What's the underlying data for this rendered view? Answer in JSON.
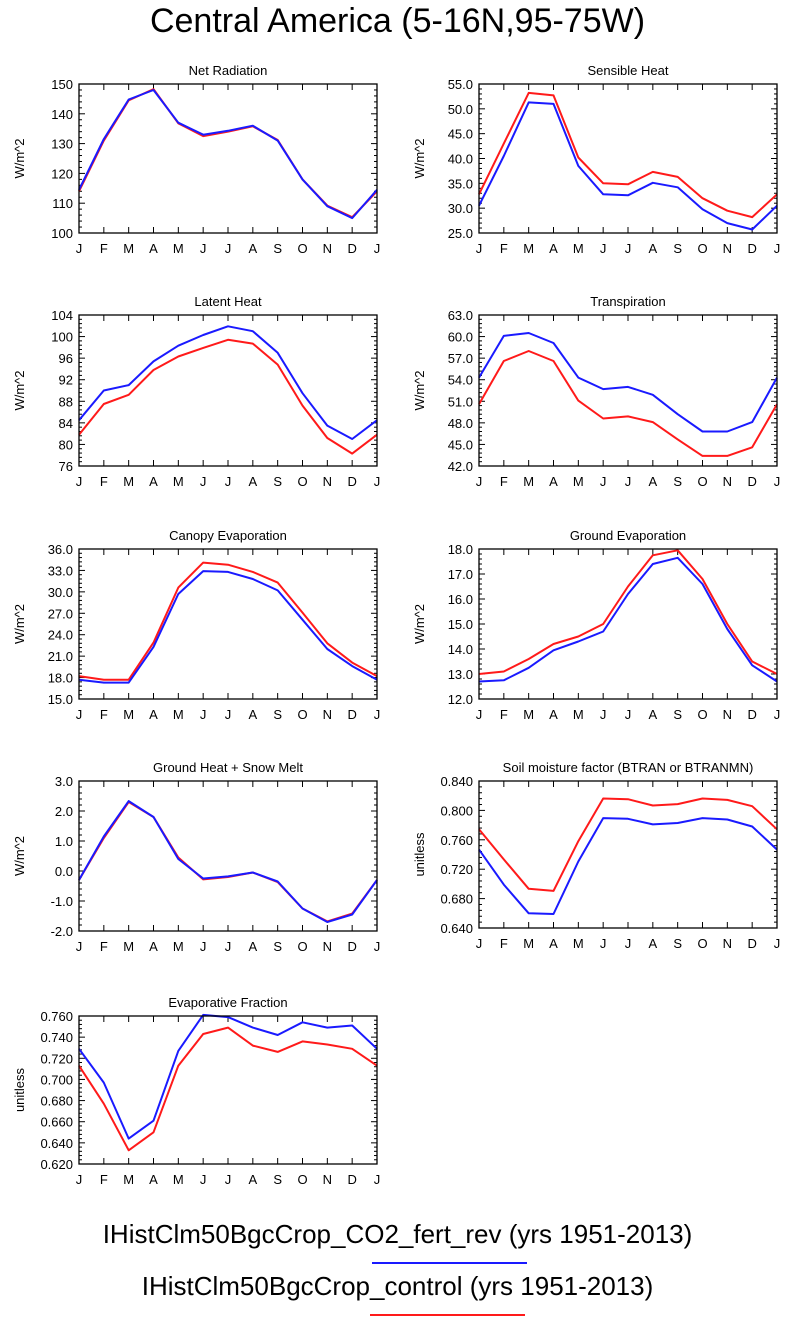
{
  "page": {
    "title": "Central America (5-16N,95-75W)"
  },
  "colors": {
    "co2_fert_rev": "#1a1aff",
    "control": "#ff1a1a"
  },
  "legend": [
    {
      "label": "IHistClm50BgcCrop_CO2_fert_rev (yrs 1951-2013)",
      "color": "#1a1aff"
    },
    {
      "label": "IHistClm50BgcCrop_control (yrs 1951-2013)",
      "color": "#ff1a1a"
    }
  ],
  "chart_data": [
    {
      "type": "line",
      "title": "Net Radiation",
      "ylabel": "W/m^2",
      "x": [
        "J",
        "F",
        "M",
        "A",
        "M",
        "J",
        "J",
        "A",
        "S",
        "O",
        "N",
        "D",
        "J"
      ],
      "ylim": [
        100,
        150
      ],
      "yticks": [
        "100",
        "110",
        "120",
        "130",
        "140",
        "150"
      ],
      "series": [
        {
          "name": "IHistClm50BgcCrop_CO2_fert_rev",
          "color": "#1a1aff",
          "values": [
            114.5,
            131.5,
            144.8,
            148.0,
            137.0,
            133.0,
            134.3,
            136.0,
            131.0,
            118.0,
            109.0,
            105.0,
            114.5
          ]
        },
        {
          "name": "IHistClm50BgcCrop_control",
          "color": "#ff1a1a",
          "values": [
            114.0,
            131.0,
            144.5,
            148.3,
            136.8,
            132.5,
            134.0,
            135.8,
            131.2,
            118.0,
            109.2,
            105.3,
            114.0
          ]
        }
      ]
    },
    {
      "type": "line",
      "title": "Sensible Heat",
      "ylabel": "W/m^2",
      "x": [
        "J",
        "F",
        "M",
        "A",
        "M",
        "J",
        "J",
        "A",
        "S",
        "O",
        "N",
        "D",
        "J"
      ],
      "ylim": [
        25,
        55
      ],
      "yticks": [
        "25.0",
        "30.0",
        "35.0",
        "40.0",
        "45.0",
        "50.0",
        "55.0"
      ],
      "series": [
        {
          "name": "IHistClm50BgcCrop_CO2_fert_rev",
          "color": "#1a1aff",
          "values": [
            30.5,
            40.5,
            51.3,
            51.0,
            38.5,
            32.8,
            32.6,
            35.1,
            34.2,
            29.8,
            27.0,
            25.7,
            30.5
          ]
        },
        {
          "name": "IHistClm50BgcCrop_control",
          "color": "#ff1a1a",
          "values": [
            32.8,
            43.0,
            53.2,
            52.7,
            40.2,
            35.0,
            34.8,
            37.3,
            36.3,
            32.0,
            29.5,
            28.2,
            32.8
          ]
        }
      ]
    },
    {
      "type": "line",
      "title": "Latent Heat",
      "ylabel": "W/m^2",
      "x": [
        "J",
        "F",
        "M",
        "A",
        "M",
        "J",
        "J",
        "A",
        "S",
        "O",
        "N",
        "D",
        "J"
      ],
      "ylim": [
        76,
        104
      ],
      "yticks": [
        "76",
        "80",
        "84",
        "88",
        "92",
        "96",
        "100",
        "104"
      ],
      "series": [
        {
          "name": "IHistClm50BgcCrop_CO2_fert_rev",
          "color": "#1a1aff",
          "values": [
            84.5,
            90.0,
            91.0,
            95.4,
            98.3,
            100.3,
            101.9,
            101.0,
            97.0,
            89.5,
            83.5,
            81.0,
            84.5
          ]
        },
        {
          "name": "IHistClm50BgcCrop_control",
          "color": "#ff1a1a",
          "values": [
            81.8,
            87.5,
            89.2,
            93.8,
            96.3,
            97.9,
            99.4,
            98.7,
            94.8,
            87.2,
            81.2,
            78.3,
            81.8
          ]
        }
      ]
    },
    {
      "type": "line",
      "title": "Transpiration",
      "ylabel": "W/m^2",
      "x": [
        "J",
        "F",
        "M",
        "A",
        "M",
        "J",
        "J",
        "A",
        "S",
        "O",
        "N",
        "D",
        "J"
      ],
      "ylim": [
        42,
        63
      ],
      "yticks": [
        "42.0",
        "45.0",
        "48.0",
        "51.0",
        "54.0",
        "57.0",
        "60.0",
        "63.0"
      ],
      "series": [
        {
          "name": "IHistClm50BgcCrop_CO2_fert_rev",
          "color": "#1a1aff",
          "values": [
            54.3,
            60.1,
            60.5,
            59.1,
            54.3,
            52.7,
            53.0,
            51.9,
            49.2,
            46.8,
            46.8,
            48.1,
            54.3
          ]
        },
        {
          "name": "IHistClm50BgcCrop_control",
          "color": "#ff1a1a",
          "values": [
            50.6,
            56.6,
            58.0,
            56.6,
            51.1,
            48.6,
            48.9,
            48.1,
            45.7,
            43.4,
            43.4,
            44.6,
            50.6
          ]
        }
      ]
    },
    {
      "type": "line",
      "title": "Canopy Evaporation",
      "ylabel": "W/m^2",
      "x": [
        "J",
        "F",
        "M",
        "A",
        "M",
        "J",
        "J",
        "A",
        "S",
        "O",
        "N",
        "D",
        "J"
      ],
      "ylim": [
        15,
        36
      ],
      "yticks": [
        "15.0",
        "18.0",
        "21.0",
        "24.0",
        "27.0",
        "30.0",
        "33.0",
        "36.0"
      ],
      "series": [
        {
          "name": "IHistClm50BgcCrop_CO2_fert_rev",
          "color": "#1a1aff",
          "values": [
            17.7,
            17.3,
            17.3,
            22.3,
            29.7,
            32.9,
            32.8,
            31.8,
            30.2,
            26.1,
            22.0,
            19.6,
            17.7
          ]
        },
        {
          "name": "IHistClm50BgcCrop_control",
          "color": "#ff1a1a",
          "values": [
            18.2,
            17.7,
            17.7,
            22.9,
            30.6,
            34.1,
            33.8,
            32.8,
            31.3,
            27.1,
            22.8,
            20.1,
            18.2
          ]
        }
      ]
    },
    {
      "type": "line",
      "title": "Ground Evaporation",
      "ylabel": "W/m^2",
      "x": [
        "J",
        "F",
        "M",
        "A",
        "M",
        "J",
        "J",
        "A",
        "S",
        "O",
        "N",
        "D",
        "J"
      ],
      "ylim": [
        12,
        18
      ],
      "yticks": [
        "12.0",
        "13.0",
        "14.0",
        "15.0",
        "16.0",
        "17.0",
        "18.0"
      ],
      "series": [
        {
          "name": "IHistClm50BgcCrop_CO2_fert_rev",
          "color": "#1a1aff",
          "values": [
            12.7,
            12.75,
            13.25,
            13.95,
            14.3,
            14.7,
            16.2,
            17.4,
            17.65,
            16.6,
            14.8,
            13.35,
            12.7
          ]
        },
        {
          "name": "IHistClm50BgcCrop_control",
          "color": "#ff1a1a",
          "values": [
            13.0,
            13.1,
            13.6,
            14.2,
            14.5,
            15.0,
            16.5,
            17.75,
            17.95,
            16.8,
            15.0,
            13.5,
            13.0
          ]
        }
      ]
    },
    {
      "type": "line",
      "title": "Ground Heat + Snow Melt",
      "ylabel": "W/m^2",
      "x": [
        "J",
        "F",
        "M",
        "A",
        "M",
        "J",
        "J",
        "A",
        "S",
        "O",
        "N",
        "D",
        "J"
      ],
      "ylim": [
        -2,
        3
      ],
      "yticks": [
        "-2.0",
        "-1.0",
        "0.0",
        "1.0",
        "2.0",
        "3.0"
      ],
      "series": [
        {
          "name": "IHistClm50BgcCrop_CO2_fert_rev",
          "color": "#1a1aff",
          "values": [
            -0.3,
            1.15,
            2.33,
            1.8,
            0.4,
            -0.25,
            -0.18,
            -0.05,
            -0.35,
            -1.25,
            -1.7,
            -1.45,
            -0.3
          ]
        },
        {
          "name": "IHistClm50BgcCrop_control",
          "color": "#ff1a1a",
          "values": [
            -0.3,
            1.1,
            2.3,
            1.8,
            0.45,
            -0.28,
            -0.2,
            -0.05,
            -0.37,
            -1.25,
            -1.68,
            -1.42,
            -0.3
          ]
        }
      ]
    },
    {
      "type": "line",
      "title": "Soil moisture factor (BTRAN or BTRANMN)",
      "ylabel": "unitless",
      "x": [
        "J",
        "F",
        "M",
        "A",
        "M",
        "J",
        "J",
        "A",
        "S",
        "O",
        "N",
        "D",
        "J"
      ],
      "ylim": [
        0.63,
        0.84
      ],
      "yticks": [
        "0.640",
        "0.680",
        "0.720",
        "0.760",
        "0.800",
        "0.840"
      ],
      "series": [
        {
          "name": "IHistClm50BgcCrop_CO2_fert_rev",
          "color": "#1a1aff",
          "values": [
            0.742,
            0.692,
            0.651,
            0.65,
            0.725,
            0.787,
            0.786,
            0.778,
            0.78,
            0.787,
            0.785,
            0.775,
            0.742
          ]
        },
        {
          "name": "IHistClm50BgcCrop_control",
          "color": "#ff1a1a",
          "values": [
            0.771,
            0.728,
            0.686,
            0.683,
            0.754,
            0.815,
            0.814,
            0.805,
            0.807,
            0.815,
            0.813,
            0.804,
            0.771
          ]
        }
      ]
    },
    {
      "type": "line",
      "title": "Evaporative Fraction",
      "ylabel": "unitless",
      "x": [
        "J",
        "F",
        "M",
        "A",
        "M",
        "J",
        "J",
        "A",
        "S",
        "O",
        "N",
        "D",
        "J"
      ],
      "ylim": [
        0.62,
        0.76
      ],
      "yticks": [
        "0.620",
        "0.640",
        "0.660",
        "0.680",
        "0.700",
        "0.720",
        "0.740",
        "0.760"
      ],
      "series": [
        {
          "name": "IHistClm50BgcCrop_CO2_fert_rev",
          "color": "#1a1aff",
          "values": [
            0.729,
            0.697,
            0.644,
            0.661,
            0.727,
            0.761,
            0.759,
            0.749,
            0.742,
            0.754,
            0.749,
            0.751,
            0.729
          ]
        },
        {
          "name": "IHistClm50BgcCrop_control",
          "color": "#ff1a1a",
          "values": [
            0.713,
            0.677,
            0.633,
            0.65,
            0.713,
            0.743,
            0.749,
            0.732,
            0.726,
            0.736,
            0.733,
            0.729,
            0.713
          ]
        }
      ]
    }
  ]
}
